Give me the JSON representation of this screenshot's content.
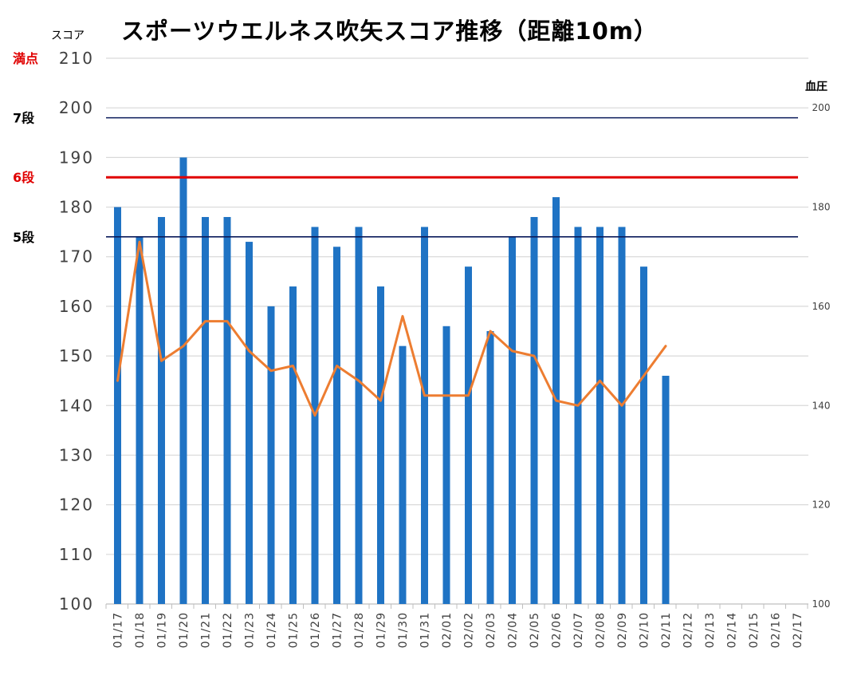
{
  "chart_data": {
    "type": "bar",
    "title": "スポーツウエルネス吹矢スコア推移（距離10m）",
    "ylabel_left": "スコア",
    "ylabel_right": "血圧",
    "ylim_left": [
      100,
      210
    ],
    "yticks_left": [
      100,
      110,
      120,
      130,
      140,
      150,
      160,
      170,
      180,
      190,
      200,
      210
    ],
    "ylim_right": [
      100,
      210
    ],
    "yticks_right": [
      100,
      120,
      140,
      160,
      180,
      200
    ],
    "grid": true,
    "categories": [
      "01/17",
      "01/18",
      "01/19",
      "01/20",
      "01/21",
      "01/22",
      "01/23",
      "01/24",
      "01/25",
      "01/26",
      "01/27",
      "01/28",
      "01/29",
      "01/30",
      "01/31",
      "02/01",
      "02/02",
      "02/03",
      "02/04",
      "02/05",
      "02/06",
      "02/07",
      "02/08",
      "02/09",
      "02/10",
      "02/11",
      "02/12",
      "02/13",
      "02/14",
      "02/15",
      "02/16",
      "02/17"
    ],
    "series": [
      {
        "type": "bar",
        "color": "#1f73c4",
        "values": [
          180,
          174,
          178,
          190,
          178,
          178,
          173,
          160,
          164,
          176,
          172,
          176,
          164,
          152,
          176,
          156,
          168,
          155,
          174,
          178,
          182,
          176,
          176,
          176,
          168,
          146,
          null,
          null,
          null,
          null,
          null,
          null
        ]
      },
      {
        "type": "line",
        "axis": "right",
        "color": "#ed7d31",
        "values": [
          145,
          173,
          149,
          152,
          157,
          157,
          151,
          147,
          148,
          138,
          148,
          145,
          141,
          158,
          142,
          142,
          142,
          155,
          151,
          150,
          141,
          140,
          145,
          140,
          146,
          152,
          null,
          null,
          null,
          null,
          null,
          null
        ]
      }
    ],
    "reference_lines": [
      {
        "label": "満点",
        "value": 210,
        "color": "#e00000",
        "line": false
      },
      {
        "label": "7段",
        "value": 198,
        "color": "#000000",
        "line_color": "#0a1a5a"
      },
      {
        "label": "6段",
        "value": 186,
        "color": "#e00000",
        "line_color": "#e00000"
      },
      {
        "label": "5段",
        "value": 174,
        "color": "#000000",
        "line_color": "#0a1a5a"
      }
    ]
  }
}
